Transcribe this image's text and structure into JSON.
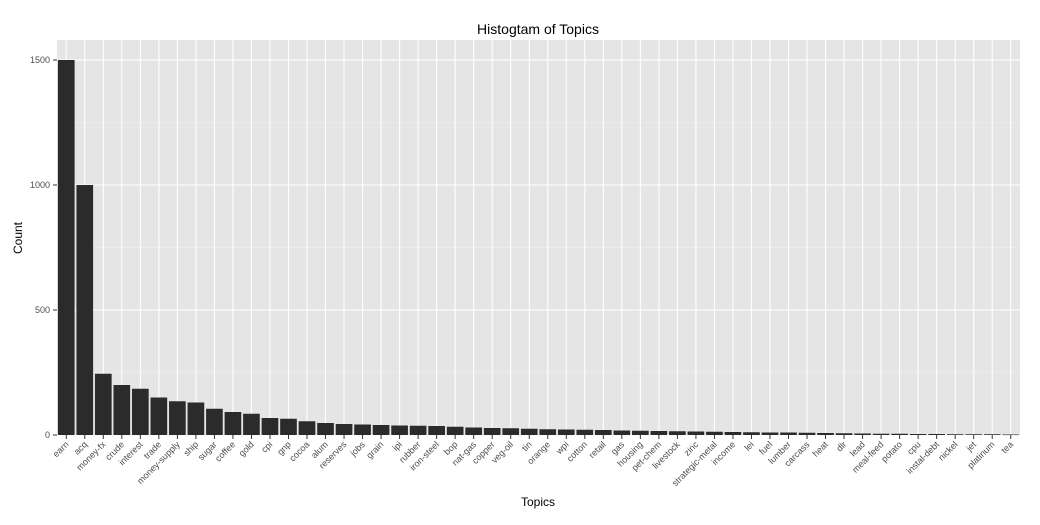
{
  "chart_data": {
    "type": "bar",
    "title": "Histogtam of Topics",
    "xlabel": "Topics",
    "ylabel": "Count",
    "ylim": [
      0,
      1580
    ],
    "y_ticks": [
      0,
      500,
      1000,
      1500
    ],
    "grid": true,
    "categories": [
      "earn",
      "acq",
      "money-fx",
      "crude",
      "interest",
      "trade",
      "money-supply",
      "ship",
      "sugar",
      "coffee",
      "gold",
      "cpi",
      "gnp",
      "cocoa",
      "alum",
      "reserves",
      "jobs",
      "grain",
      "ipi",
      "rubber",
      "iron-steel",
      "bop",
      "nat-gas",
      "copper",
      "veg-oil",
      "tin",
      "orange",
      "wpi",
      "cotton",
      "retail",
      "gas",
      "housing",
      "pet-chem",
      "livestock",
      "zinc",
      "strategic-metal",
      "income",
      "lei",
      "fuel",
      "lumber",
      "carcass",
      "heat",
      "dlr",
      "lead",
      "meal-feed",
      "potato",
      "cpu",
      "instal-debt",
      "nickel",
      "jet",
      "platinum",
      "tea"
    ],
    "values": [
      1500,
      1000,
      245,
      200,
      185,
      150,
      135,
      130,
      105,
      92,
      85,
      68,
      65,
      55,
      48,
      44,
      42,
      40,
      38,
      37,
      36,
      33,
      30,
      28,
      27,
      25,
      23,
      22,
      21,
      20,
      18,
      17,
      16,
      15,
      14,
      13,
      12,
      11,
      10,
      10,
      9,
      8,
      7,
      6,
      5,
      5,
      4,
      4,
      3,
      3,
      3,
      2
    ],
    "colors": {
      "panel": "#e5e5e5",
      "grid_major": "#ffffff",
      "grid_minor": "#f2f2f2",
      "bar": "#2b2b2b"
    }
  }
}
